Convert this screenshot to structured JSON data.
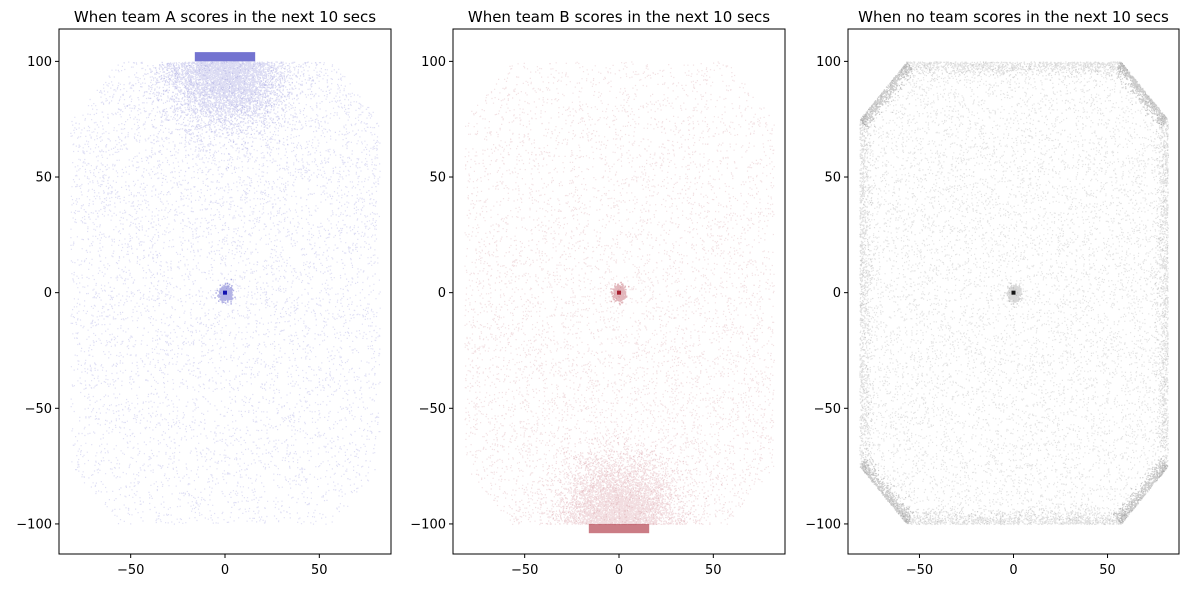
{
  "chart_data": [
    {
      "type": "scatter",
      "title": "When team A scores in the next 10 secs",
      "xlabel": "",
      "ylabel": "",
      "xlim": [
        -88,
        88
      ],
      "ylim": [
        -113,
        114
      ],
      "xticks": [
        -50,
        0,
        50
      ],
      "yticks": [
        -100,
        -50,
        0,
        50,
        100
      ],
      "grid": false,
      "color": "#0000aa",
      "point_alpha": 0.06,
      "density_hotspot": "top goal area (y 80 to 105) and center (0, 0)",
      "goal_region": {
        "x": [
          -16,
          16
        ],
        "y": [
          100,
          104
        ]
      },
      "field_outline": {
        "x": [
          -82,
          82
        ],
        "y": [
          -100,
          100
        ],
        "corner_chamfer": 25
      }
    },
    {
      "type": "scatter",
      "title": "When team B scores in the next 10 secs",
      "xlabel": "",
      "ylabel": "",
      "xlim": [
        -88,
        88
      ],
      "ylim": [
        -113,
        114
      ],
      "xticks": [
        -50,
        0,
        50
      ],
      "yticks": [
        -100,
        -50,
        0,
        50,
        100
      ],
      "grid": false,
      "color": "#a01020",
      "point_alpha": 0.06,
      "density_hotspot": "bottom goal area (y -80 to -105) and center (0, 0)",
      "goal_region": {
        "x": [
          -16,
          16
        ],
        "y": [
          -104,
          -100
        ]
      },
      "field_outline": {
        "x": [
          -82,
          82
        ],
        "y": [
          -100,
          100
        ],
        "corner_chamfer": 25
      }
    },
    {
      "type": "scatter",
      "title": "When no team scores in the next 10 secs",
      "xlabel": "",
      "ylabel": "",
      "xlim": [
        -88,
        88
      ],
      "ylim": [
        -113,
        114
      ],
      "xticks": [
        -50,
        0,
        50
      ],
      "yticks": [
        -100,
        -50,
        0,
        50,
        100
      ],
      "grid": false,
      "color": "#000000",
      "point_alpha": 0.06,
      "density_hotspot": "field boundary and center (0, 0)",
      "field_outline": {
        "x": [
          -82,
          82
        ],
        "y": [
          -100,
          100
        ],
        "corner_chamfer": 25
      }
    }
  ]
}
